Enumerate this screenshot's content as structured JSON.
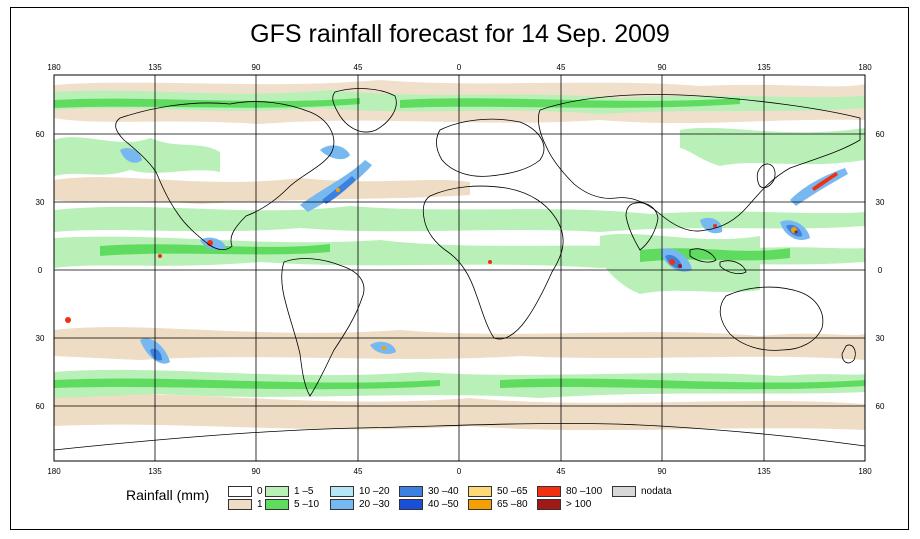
{
  "title": "GFS rainfall forecast for 14 Sep. 2009",
  "map": {
    "lon_labels": [
      "180",
      "135",
      "90",
      "45",
      "0",
      "45",
      "90",
      "135",
      "180"
    ],
    "lat_labels": [
      "60",
      "30",
      "0",
      "30",
      "60"
    ],
    "gridlines": {
      "lon": [
        -180,
        -135,
        -90,
        -45,
        0,
        45,
        90,
        135,
        180
      ],
      "lat": [
        60,
        30,
        0,
        -30,
        -60
      ]
    },
    "extent": {
      "lon": [
        -180,
        180
      ],
      "lat": [
        -90,
        90
      ]
    }
  },
  "legend": {
    "title": "Rainfall (mm)",
    "classes": [
      {
        "label": "0",
        "color": "#ffffff"
      },
      {
        "label": "1",
        "color": "#eedcc4"
      },
      {
        "label": "1 –5",
        "color": "#b8f0b8"
      },
      {
        "label": "5 –10",
        "color": "#5fdc5f"
      },
      {
        "label": "10 –20",
        "color": "#b4e6f4"
      },
      {
        "label": "20 –30",
        "color": "#78b8f0"
      },
      {
        "label": "30 –40",
        "color": "#3c80e0"
      },
      {
        "label": "40 –50",
        "color": "#1a50d8"
      },
      {
        "label": "50 –65",
        "color": "#ffd878"
      },
      {
        "label": "65 –80",
        "color": "#f5a000"
      },
      {
        "label": "80 –100",
        "color": "#f03010"
      },
      {
        "label": "> 100",
        "color": "#a01818"
      },
      {
        "label": "nodata",
        "color": "#d8d8d8"
      }
    ]
  }
}
